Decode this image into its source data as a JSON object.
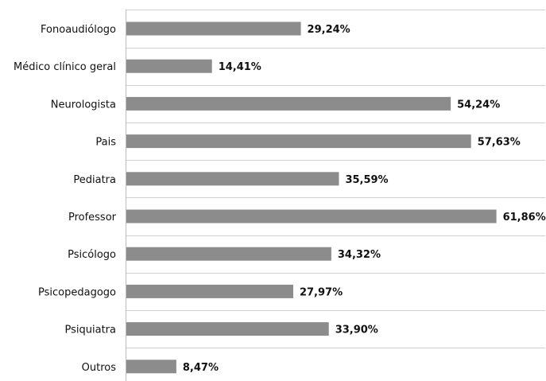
{
  "chart_data": {
    "type": "bar",
    "orientation": "horizontal",
    "categories": [
      "Fonoaudiólogo",
      "Médico clínico geral",
      "Neurologista",
      "Pais",
      "Pediatra",
      "Professor",
      "Psicólogo",
      "Psicopedagogo",
      "Psiquiatra",
      "Outros"
    ],
    "values": [
      29.24,
      14.41,
      54.24,
      57.63,
      35.59,
      61.86,
      34.32,
      27.97,
      33.9,
      8.47
    ],
    "value_labels": [
      "29,24%",
      "14,41%",
      "54,24%",
      "57,63%",
      "35,59%",
      "61,86%",
      "34,32%",
      "27,97%",
      "33,90%",
      "8,47%"
    ],
    "title": "",
    "xlabel": "",
    "ylabel": "",
    "xlim": [
      0,
      70
    ],
    "grid": true,
    "legend": "none",
    "bar_color": "#8c8c8c",
    "grid_color": "#d0d0d0"
  }
}
